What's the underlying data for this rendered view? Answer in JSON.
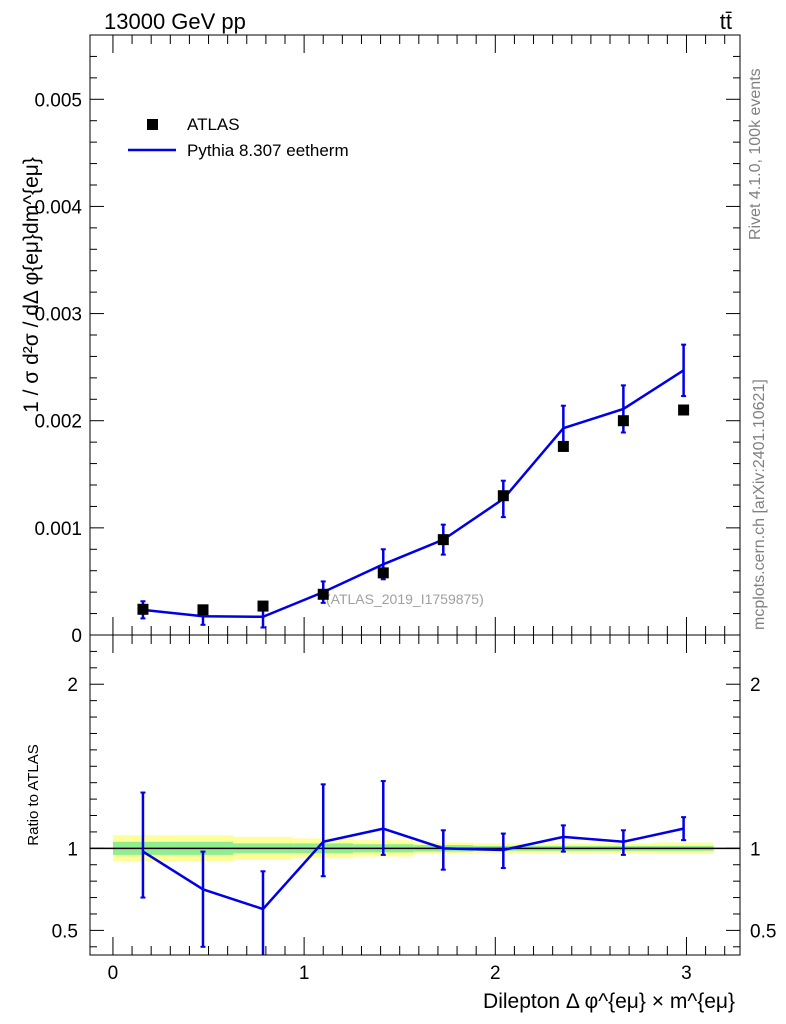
{
  "header": {
    "left_label": "13000 GeV pp",
    "right_label": "tt̄"
  },
  "side_labels": {
    "rivet": "Rivet 4.1.0,  100k events",
    "source": "mcplots.cern.ch [arXiv:2401.10621]"
  },
  "colors": {
    "mc_line": "#0000e6",
    "data_marker": "#000000",
    "band_inner": "#90ee90",
    "band_outer": "#ffff99"
  },
  "chart_data": [
    {
      "type": "scatter",
      "title": "13000 GeV pp",
      "ylabel": "1 / σ  d²σ / dΔ φ{eμ}dm^{eμ}",
      "analysis_label": "(ATLAS_2019_I1759875)",
      "xlim": [
        -0.12,
        3.28
      ],
      "ylim": [
        0,
        0.0056
      ],
      "yticks": [
        0,
        0.001,
        0.002,
        0.003,
        0.004,
        0.005
      ],
      "ytick_labels": [
        "0",
        "0.001",
        "0.002",
        "0.003",
        "0.004",
        "0.005"
      ],
      "legend": [
        "ATLAS",
        "Pythia 8.307 eetherm"
      ],
      "legend_position": "top-left",
      "x": [
        0.157,
        0.471,
        0.785,
        1.1,
        1.414,
        1.728,
        2.042,
        2.356,
        2.67,
        2.985
      ],
      "series": [
        {
          "name": "ATLAS",
          "values": [
            0.00024,
            0.000235,
            0.00027,
            0.00038,
            0.00058,
            0.00089,
            0.0013,
            0.00176,
            0.002,
            0.0021
          ]
        },
        {
          "name": "Pythia 8.307 eetherm",
          "values": [
            0.000235,
            0.000175,
            0.00017,
            0.0004,
            0.00066,
            0.00089,
            0.00127,
            0.00193,
            0.00211,
            0.00247
          ],
          "err": [
            8e-05,
            8e-05,
            0.0001,
            0.0001,
            0.00014,
            0.00014,
            0.00017,
            0.00021,
            0.00022,
            0.00024
          ]
        }
      ]
    },
    {
      "type": "line",
      "ylabel": "Ratio to ATLAS",
      "xlabel": "Dilepton Δ φ^{eμ} × m^{eμ}",
      "xlim": [
        -0.12,
        3.28
      ],
      "ylim": [
        0.35,
        2.3
      ],
      "xticks": [
        0,
        1,
        2,
        3
      ],
      "xtick_labels": [
        "0",
        "1",
        "2",
        "3"
      ],
      "yticks": [
        0.5,
        1,
        2
      ],
      "ytick_labels": [
        "0.5",
        "1",
        "2"
      ],
      "x": [
        0.157,
        0.471,
        0.785,
        1.1,
        1.414,
        1.728,
        2.042,
        2.356,
        2.67,
        2.985
      ],
      "series": [
        {
          "name": "Pythia 8.307 eetherm / ATLAS",
          "values": [
            0.98,
            0.75,
            0.63,
            1.04,
            1.12,
            1.0,
            0.99,
            1.07,
            1.04,
            1.12
          ],
          "err_up": [
            0.36,
            0.23,
            0.23,
            0.35,
            0.29,
            0.11,
            0.1,
            0.07,
            0.07,
            0.07
          ],
          "err_down": [
            0.28,
            0.35,
            0.28,
            0.21,
            0.16,
            0.13,
            0.11,
            0.09,
            0.08,
            0.07
          ]
        }
      ],
      "band_inner": [
        0.04,
        0.04,
        0.03,
        0.03,
        0.025,
        0.02,
        0.015,
        0.015,
        0.015,
        0.015
      ],
      "band_outer": [
        0.08,
        0.08,
        0.07,
        0.06,
        0.05,
        0.035,
        0.03,
        0.03,
        0.03,
        0.035
      ]
    }
  ]
}
